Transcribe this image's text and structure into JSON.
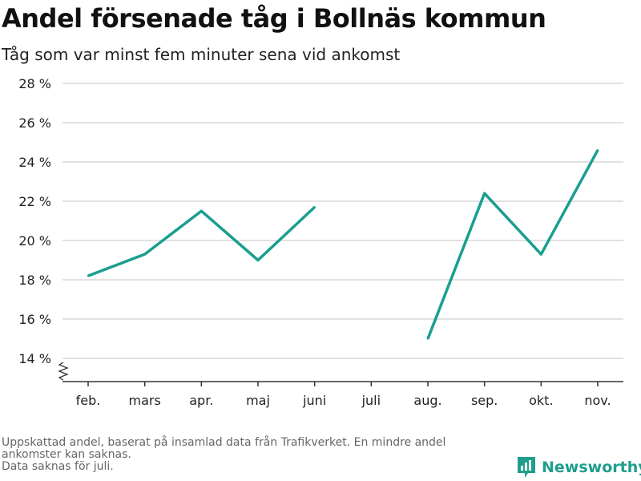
{
  "title": "Andel försenade tåg i Bollnäs kommun",
  "subtitle": "Tåg som var minst fem minuter sena vid ankomst",
  "footnote": {
    "line1": "Uppskattad andel, baserat på insamlad data från Trafikverket. En mindre andel",
    "line2": "ankomster kan saknas.",
    "line3": "Data saknas för juli."
  },
  "brand": {
    "name": "Newsworthy",
    "icon": "newsworthy-logo-icon",
    "color": "#1f9e8c"
  },
  "chart_data": {
    "type": "line",
    "categories": [
      "feb.",
      "mars",
      "apr.",
      "maj",
      "juni",
      "juli",
      "aug.",
      "sep.",
      "okt.",
      "nov."
    ],
    "series": [
      {
        "values": [
          18.2,
          19.3,
          21.5,
          19.0,
          21.7,
          null,
          15.0,
          22.4,
          19.3,
          24.6
        ],
        "color": "#1a9e8f"
      }
    ],
    "ylim": [
      14,
      28
    ],
    "yticks": [
      14,
      16,
      18,
      20,
      22,
      24,
      26,
      28
    ],
    "ytick_labels": [
      "14 %",
      "16 %",
      "18 %",
      "20 %",
      "22 %",
      "24 %",
      "26 %",
      "28 %"
    ],
    "axis_break": true,
    "grid": true,
    "legend": "none"
  }
}
